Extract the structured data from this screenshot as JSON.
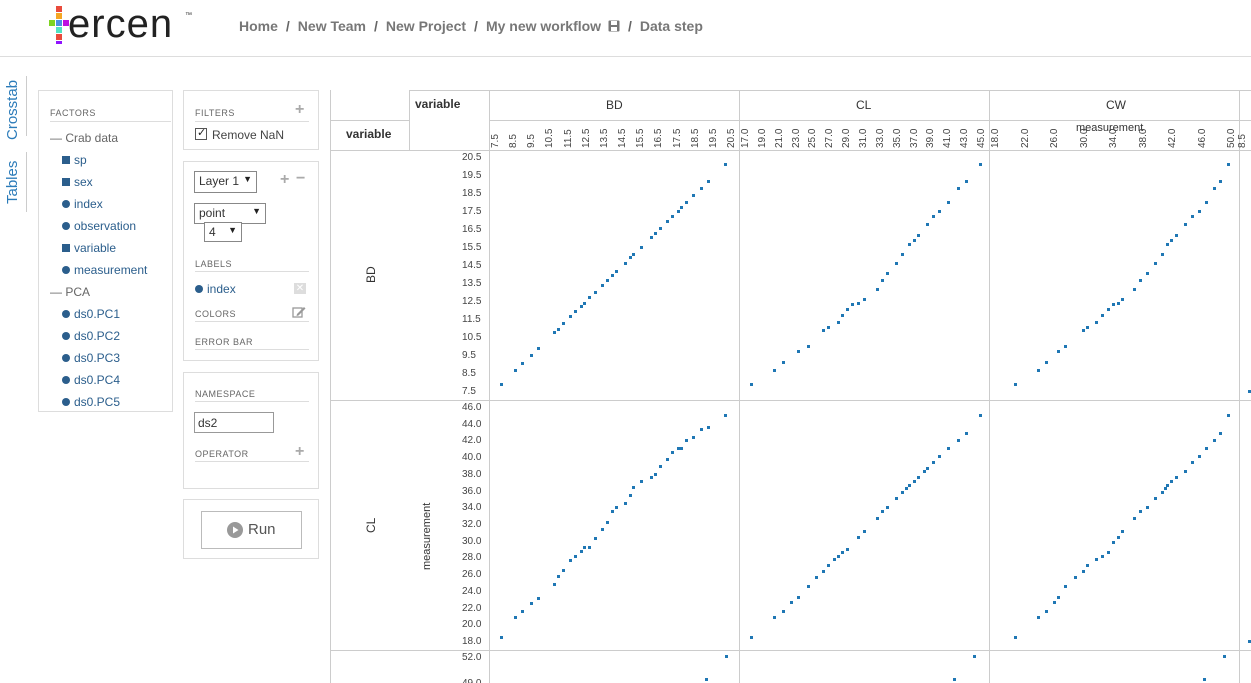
{
  "app": {
    "logo_word": "ercen",
    "logo_tm": "™",
    "breadcrumb": [
      "Home",
      "New Team",
      "New Project",
      "My new workflow",
      "Data step"
    ],
    "workflow_icon": "save-icon"
  },
  "side_tabs": {
    "crosstab": "Crosstab",
    "tables": "Tables"
  },
  "factors": {
    "title": "FACTORS",
    "groups": [
      {
        "name": "Crab data",
        "items": [
          {
            "label": "sp",
            "shape": "square"
          },
          {
            "label": "sex",
            "shape": "square"
          },
          {
            "label": "index",
            "shape": "circle"
          },
          {
            "label": "observation",
            "shape": "circle"
          },
          {
            "label": "variable",
            "shape": "square"
          },
          {
            "label": "measurement",
            "shape": "circle"
          }
        ]
      },
      {
        "name": "PCA",
        "items": [
          {
            "label": "ds0.PC1",
            "shape": "circle"
          },
          {
            "label": "ds0.PC2",
            "shape": "circle"
          },
          {
            "label": "ds0.PC3",
            "shape": "circle"
          },
          {
            "label": "ds0.PC4",
            "shape": "circle"
          },
          {
            "label": "ds0.PC5",
            "shape": "circle"
          }
        ]
      }
    ]
  },
  "filters": {
    "title": "FILTERS",
    "remove_nan": "Remove NaN",
    "remove_nan_checked": true
  },
  "layer": {
    "layer_select": "Layer 1",
    "geom_select": "point",
    "size_select": "4",
    "labels_title": "LABELS",
    "label_item": "index",
    "colors_title": "COLORS",
    "errorbar_title": "ERROR BAR"
  },
  "namespace": {
    "title": "NAMESPACE",
    "value": "ds2",
    "operator_title": "OPERATOR"
  },
  "run": {
    "label": "Run"
  },
  "crosstab": {
    "col_header_label": "variable",
    "row_header_label": "variable",
    "x_axis_label": "measurement",
    "y_axis_label": "measurement",
    "columns": [
      {
        "name": "BD",
        "ticks": [
          "7.5",
          "8.5",
          "9.5",
          "10.5",
          "11.5",
          "12.5",
          "13.5",
          "14.5",
          "15.5",
          "16.5",
          "17.5",
          "18.5",
          "19.5",
          "20.5"
        ]
      },
      {
        "name": "CL",
        "ticks": [
          "17.0",
          "19.0",
          "21.0",
          "23.0",
          "25.0",
          "27.0",
          "29.0",
          "31.0",
          "33.0",
          "35.0",
          "37.0",
          "39.0",
          "41.0",
          "43.0",
          "45.0"
        ]
      },
      {
        "name": "CW",
        "ticks": [
          "18.0",
          "22.0",
          "26.0",
          "30.0",
          "34.0",
          "38.0",
          "42.0",
          "46.0",
          "50.0"
        ]
      },
      {
        "name": "",
        "ticks": [
          "8.5"
        ]
      }
    ],
    "rows": [
      {
        "name": "BD",
        "ticks": [
          "20.5",
          "19.5",
          "18.5",
          "17.5",
          "16.5",
          "15.5",
          "14.5",
          "13.5",
          "12.5",
          "11.5",
          "10.5",
          "9.5",
          "8.5",
          "7.5"
        ]
      },
      {
        "name": "CL",
        "ticks": [
          "46.0",
          "44.0",
          "42.0",
          "40.0",
          "38.0",
          "36.0",
          "34.0",
          "32.0",
          "30.0",
          "28.0",
          "26.0",
          "24.0",
          "22.0",
          "20.0",
          "18.0"
        ]
      },
      {
        "name": "",
        "ticks": [
          "52.0",
          "49.0"
        ]
      }
    ]
  },
  "chart_data": {
    "type": "scatter",
    "xlabel": "measurement",
    "ylabel": "measurement",
    "panels": [
      {
        "row": "BD",
        "col": "BD",
        "xlim": [
          7.2,
          20.8
        ],
        "ylim": [
          7.2,
          20.8
        ],
        "x": [
          7.6,
          8.4,
          8.8,
          9.3,
          9.7,
          10.6,
          10.8,
          11.1,
          11.5,
          11.8,
          12.1,
          12.3,
          12.6,
          12.9,
          13.3,
          13.6,
          13.9,
          14.1,
          14.6,
          14.9,
          15.1,
          15.5,
          16.1,
          16.3,
          16.6,
          17.0,
          17.3,
          17.6,
          17.8,
          18.1,
          18.5,
          18.9,
          19.3,
          20.3
        ],
        "y": [
          7.6,
          8.4,
          8.8,
          9.3,
          9.7,
          10.6,
          10.8,
          11.1,
          11.5,
          11.8,
          12.1,
          12.3,
          12.6,
          12.9,
          13.3,
          13.6,
          13.9,
          14.1,
          14.6,
          14.9,
          15.1,
          15.5,
          16.1,
          16.3,
          16.6,
          17.0,
          17.3,
          17.6,
          17.8,
          18.1,
          18.5,
          18.9,
          19.3,
          20.3
        ]
      },
      {
        "row": "BD",
        "col": "CL",
        "xlim": [
          16.5,
          46.0
        ],
        "ylim": [
          7.2,
          20.8
        ],
        "x": [
          17.4,
          20.2,
          21.3,
          23.1,
          24.3,
          26.2,
          26.8,
          28.0,
          28.6,
          29.1,
          29.8,
          30.5,
          31.2,
          32.8,
          33.4,
          34.1,
          35.2,
          35.9,
          36.8,
          37.4,
          37.9,
          39.0,
          39.7,
          40.5,
          41.6,
          42.8,
          43.8,
          45.5
        ],
        "y": [
          7.6,
          8.4,
          8.9,
          9.5,
          9.8,
          10.7,
          10.9,
          11.2,
          11.6,
          11.9,
          12.2,
          12.3,
          12.5,
          13.1,
          13.6,
          14.0,
          14.6,
          15.1,
          15.7,
          15.9,
          16.2,
          16.8,
          17.3,
          17.6,
          18.1,
          18.9,
          19.3,
          20.3
        ]
      },
      {
        "row": "BD",
        "col": "CW",
        "xlim": [
          17.0,
          51.0
        ],
        "ylim": [
          7.2,
          20.8
        ],
        "x": [
          20.0,
          23.2,
          24.4,
          26.0,
          27.1,
          29.6,
          30.2,
          31.4,
          32.3,
          33.1,
          33.8,
          34.6,
          35.1,
          36.8,
          37.7,
          38.6,
          39.8,
          40.8,
          41.5,
          42.1,
          42.8,
          44.0,
          45.1,
          46.0,
          47.0,
          48.1,
          49.0,
          50.2
        ],
        "y": [
          7.6,
          8.4,
          8.9,
          9.5,
          9.8,
          10.7,
          10.9,
          11.2,
          11.6,
          11.9,
          12.2,
          12.3,
          12.5,
          13.1,
          13.6,
          14.0,
          14.6,
          15.1,
          15.7,
          15.9,
          16.2,
          16.8,
          17.3,
          17.6,
          18.1,
          18.9,
          19.3,
          20.3
        ]
      },
      {
        "row": "CL",
        "col": "BD",
        "xlim": [
          7.2,
          20.8
        ],
        "ylim": [
          17.0,
          47.0
        ],
        "x": [
          7.6,
          8.4,
          8.8,
          9.3,
          9.7,
          10.6,
          10.8,
          11.1,
          11.5,
          11.8,
          12.1,
          12.3,
          12.6,
          12.9,
          13.3,
          13.6,
          13.9,
          14.1,
          14.6,
          14.9,
          15.1,
          15.5,
          16.1,
          16.3,
          16.6,
          17.0,
          17.3,
          17.6,
          17.8,
          18.1,
          18.5,
          18.9,
          19.3,
          20.3
        ],
        "y": [
          17.5,
          20.0,
          20.8,
          21.9,
          22.5,
          24.3,
          25.3,
          26.0,
          27.3,
          27.8,
          28.5,
          28.9,
          29.0,
          30.1,
          31.2,
          32.1,
          33.5,
          34.0,
          34.5,
          35.6,
          36.6,
          37.3,
          37.9,
          38.2,
          39.3,
          40.1,
          41.0,
          41.6,
          41.6,
          42.5,
          43.0,
          43.9,
          44.2,
          45.7
        ]
      },
      {
        "row": "CL",
        "col": "CL",
        "xlim": [
          16.5,
          46.0
        ],
        "ylim": [
          17.0,
          47.0
        ],
        "x": [
          17.4,
          20.2,
          21.3,
          22.3,
          23.1,
          24.3,
          25.4,
          26.2,
          26.8,
          27.6,
          28.0,
          28.6,
          29.1,
          30.5,
          31.2,
          32.8,
          33.4,
          34.1,
          35.2,
          35.9,
          36.4,
          36.8,
          37.4,
          37.9,
          38.6,
          39.0,
          39.7,
          40.5,
          41.6,
          42.8,
          43.8,
          45.5
        ],
        "y": [
          17.5,
          20.0,
          20.8,
          22.0,
          22.6,
          24.0,
          25.2,
          25.9,
          26.7,
          27.4,
          27.8,
          28.3,
          28.7,
          30.2,
          31.0,
          32.7,
          33.5,
          34.1,
          35.2,
          35.9,
          36.4,
          36.8,
          37.4,
          37.9,
          38.6,
          39.0,
          39.7,
          40.5,
          41.6,
          42.6,
          43.4,
          45.7
        ]
      },
      {
        "row": "CL",
        "col": "CW",
        "xlim": [
          17.0,
          51.0
        ],
        "ylim": [
          17.0,
          47.0
        ],
        "x": [
          20.0,
          23.2,
          24.4,
          25.5,
          26.0,
          27.1,
          28.5,
          29.6,
          30.2,
          31.4,
          32.3,
          33.1,
          33.8,
          34.6,
          35.1,
          36.8,
          37.7,
          38.6,
          39.8,
          40.8,
          41.2,
          41.5,
          42.1,
          42.8,
          44.0,
          45.1,
          46.0,
          47.0,
          48.1,
          49.0,
          50.2
        ],
        "y": [
          17.5,
          20.0,
          20.8,
          22.0,
          22.6,
          24.0,
          25.2,
          25.9,
          26.7,
          27.4,
          27.8,
          28.3,
          29.6,
          30.2,
          31.0,
          32.7,
          33.5,
          34.1,
          35.2,
          35.9,
          36.4,
          36.8,
          37.4,
          37.9,
          38.6,
          39.7,
          40.5,
          41.6,
          42.6,
          43.4,
          45.7
        ]
      }
    ]
  }
}
